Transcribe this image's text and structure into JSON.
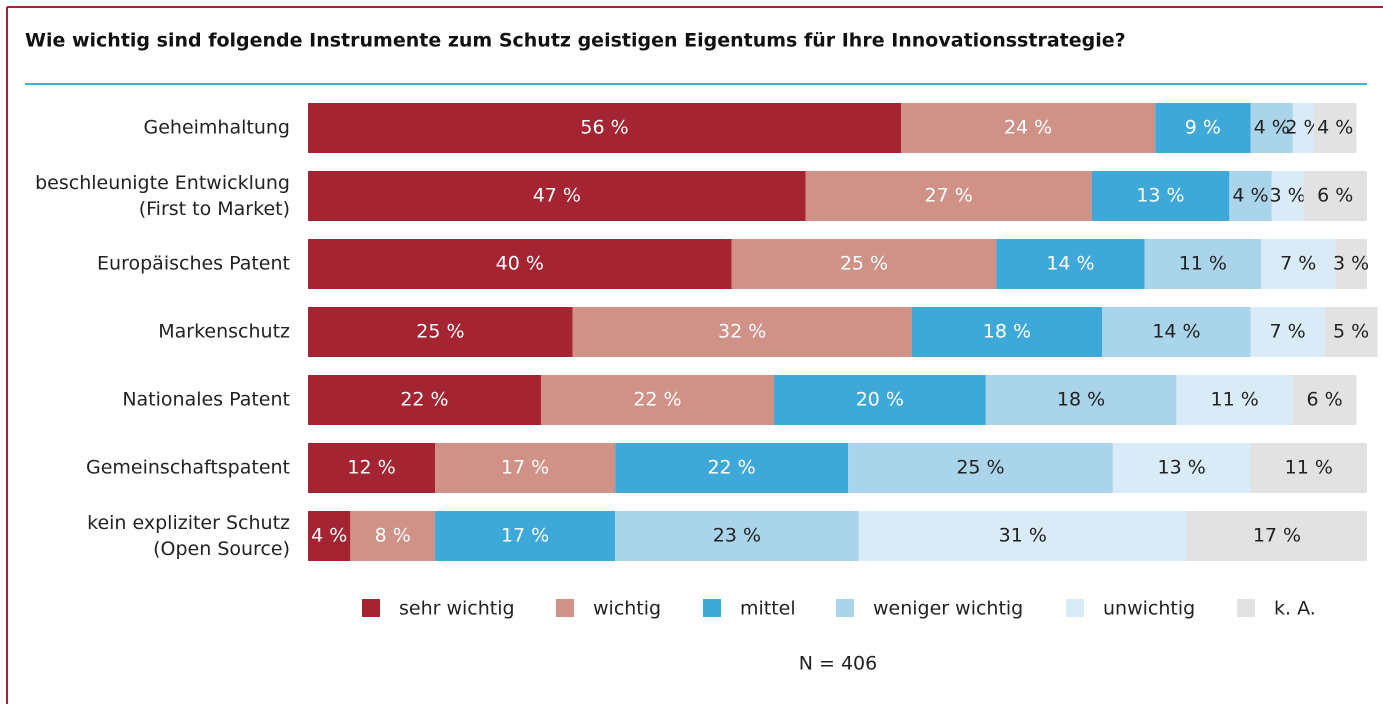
{
  "chart_data": {
    "type": "stacked-bar-horizontal",
    "title": "Wie wichtig sind folgende Instrumente zum Schutz geistigen Eigentums für Ihre Innovationsstrategie?",
    "categories": [
      "Geheimhaltung",
      "beschleunigte Entwicklung\n(First to Market)",
      "Europäisches Patent",
      "Markenschutz",
      "Nationales Patent",
      "Gemeinschaftspatent",
      "kein expliziter Schutz\n(Open Source)"
    ],
    "xlim": [
      0,
      100
    ],
    "series": [
      {
        "name": "sehr wichtig",
        "color": "#a52431",
        "values": [
          56,
          47,
          40,
          25,
          22,
          12,
          4
        ],
        "value_labels": [
          "56 %",
          "47 %",
          "40 %",
          "25 %",
          "22 %",
          "12 %",
          "4 %"
        ]
      },
      {
        "name": "wichtig",
        "color": "#d09187",
        "values": [
          24,
          27,
          25,
          32,
          22,
          17,
          8
        ],
        "value_labels": [
          "24 %",
          "27 %",
          "25 %",
          "32 %",
          "22 %",
          "17 %",
          "8 %"
        ]
      },
      {
        "name": "mittel",
        "color": "#3ea9d8",
        "values": [
          9,
          13,
          14,
          18,
          20,
          22,
          17
        ],
        "value_labels": [
          "9 %",
          "13 %",
          "14 %",
          "18 %",
          "20 %",
          "22 %",
          "17 %"
        ]
      },
      {
        "name": "weniger wichtig",
        "color": "#aad4ea",
        "values": [
          4,
          4,
          11,
          14,
          18,
          25,
          23
        ],
        "value_labels": [
          "4 %",
          "4 %",
          "11 %",
          "14 %",
          "18 %",
          "25 %",
          "23 %"
        ]
      },
      {
        "name": "unwichtig",
        "color": "#d9ebf7",
        "values": [
          2,
          3,
          7,
          7,
          11,
          13,
          31
        ],
        "value_labels": [
          "2 %",
          "3 %",
          "7 %",
          "7 %",
          "11 %",
          "13 %",
          "31 %"
        ]
      },
      {
        "name": "k. A.",
        "color": "#e2e2e2",
        "values": [
          4,
          6,
          3,
          5,
          6,
          11,
          17
        ],
        "value_labels": [
          "4 %",
          "6 %",
          "3 %",
          "5 %",
          "6 %",
          "11 %",
          "17 %"
        ]
      }
    ],
    "note": "N = 406"
  }
}
